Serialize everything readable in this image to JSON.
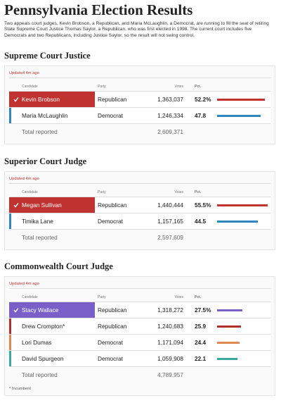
{
  "header": {
    "title": "Pennsylvania Election Results",
    "intro": "Two appeals court judges, Kevin Brobson, a Republican, and Maria McLaughlin, a Democrat, are running to fill the seat of retiring State Supreme Court Justice Thomas Saylor, a Republican, who was first elected in 1998. The current court includes five Democrats and two Republicans, including Justice Saylor, so the result will not swing control."
  },
  "races": [
    {
      "title": "Supreme Court Justice",
      "updated": "Updated 4m ago",
      "columns": [
        "Candidate",
        "Party",
        "Votes",
        "Pct."
      ],
      "rows": [
        {
          "candidate": "Kevin Brobson",
          "party": "Republican",
          "votes": "1,363,037",
          "pct": 52.2,
          "pct_label": "52.2%",
          "winner": true,
          "color": "#c0322f"
        },
        {
          "candidate": "Maria McLaughlin",
          "party": "Democrat",
          "votes": "1,246,334",
          "pct": 47.8,
          "color": "#2f86c0"
        }
      ],
      "total_label": "Total reported",
      "total_votes": "2,609,371"
    },
    {
      "title": "Superior Court Judge",
      "updated": "Updated 4m ago",
      "columns": [
        "Candidate",
        "Party",
        "Votes",
        "Pct."
      ],
      "rows": [
        {
          "candidate": "Megan Sullivan",
          "party": "Republican",
          "votes": "1,440,444",
          "pct": 55.5,
          "pct_label": "55.5%",
          "winner": true,
          "color": "#c0322f"
        },
        {
          "candidate": "Timika Lane",
          "party": "Democrat",
          "votes": "1,157,165",
          "pct": 44.5,
          "color": "#2f86c0"
        }
      ],
      "total_label": "Total reported",
      "total_votes": "2,597,609"
    },
    {
      "title": "Commonwealth Court Judge",
      "updated": "Updated 4m ago",
      "columns": [
        "Candidate",
        "Party",
        "Votes",
        "Pct."
      ],
      "rows": [
        {
          "candidate": "Stacy Wallace",
          "party": "Republican",
          "votes": "1,318,272",
          "pct": 27.5,
          "pct_label": "27.5%",
          "winner": true,
          "color": "#7b5fc9"
        },
        {
          "candidate": "Drew Crompton*",
          "party": "Republican",
          "votes": "1,240,683",
          "pct": 25.9,
          "color": "#b0302e"
        },
        {
          "candidate": "Lori Dumas",
          "party": "Democrat",
          "votes": "1,171,094",
          "pct": 24.4,
          "color": "#e08a52"
        },
        {
          "candidate": "David Spurgeon",
          "party": "Democrat",
          "votes": "1,059,908",
          "pct": 22.1,
          "color": "#3aa89e"
        }
      ],
      "total_label": "Total reported",
      "total_votes": "4,789,957",
      "footnote": "* Incumbent"
    }
  ]
}
